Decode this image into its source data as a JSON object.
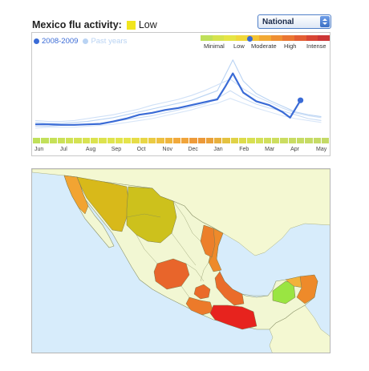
{
  "header": {
    "title": "Mexico flu activity:",
    "level": "Low",
    "level_color": "#f1e51d"
  },
  "region_select": {
    "selected": "National"
  },
  "legend": {
    "current": "2008-2009",
    "current_color": "#3a6bd6",
    "past": "Past years",
    "past_color": "#b9d3f3"
  },
  "scale": {
    "labels": [
      "Minimal",
      "Low",
      "Moderate",
      "High",
      "Intense"
    ],
    "current_level_fraction": 0.38,
    "colors": [
      "#bfe05a",
      "#d6e34e",
      "#e6e545",
      "#f0d83b",
      "#f4c434",
      "#f2a933",
      "#ef8f32",
      "#ea7632",
      "#e35e33",
      "#d84634",
      "#cc3636"
    ]
  },
  "chart_data": {
    "type": "line",
    "title": "Mexico flu activity: Low",
    "xlabel": "",
    "ylabel": "",
    "categories": [
      "Jun",
      "Jul",
      "Aug",
      "Sep",
      "Oct",
      "Nov",
      "Dec",
      "Jan",
      "Feb",
      "Mar",
      "Apr",
      "May"
    ],
    "series": [
      {
        "name": "2008-2009",
        "color": "#3a6bd6",
        "x": [
          0,
          0.5,
          1,
          1.5,
          2,
          2.5,
          3,
          3.5,
          4,
          4.5,
          5,
          5.5,
          6,
          6.5,
          7,
          7.3,
          7.6,
          8,
          8.5,
          9,
          9.5,
          9.8,
          10.2
        ],
        "y": [
          0.9,
          0.9,
          0.85,
          0.85,
          0.9,
          0.95,
          1.2,
          1.5,
          1.9,
          2.1,
          2.4,
          2.6,
          2.9,
          3.2,
          3.5,
          4.8,
          6.2,
          4.2,
          3.3,
          2.9,
          2.2,
          1.6,
          3.4
        ]
      },
      {
        "name": "Past years",
        "color": "#b9d3f3",
        "x": [
          0,
          0.5,
          1,
          1.5,
          2,
          2.5,
          3,
          3.5,
          4,
          4.5,
          5,
          5.5,
          6,
          6.5,
          7,
          7.3,
          7.6,
          8,
          8.5,
          9,
          9.5,
          10,
          10.5,
          11
        ],
        "y": [
          1.1,
          1.0,
          1.0,
          1.1,
          1.2,
          1.4,
          1.6,
          1.9,
          2.2,
          2.5,
          2.8,
          3.1,
          3.4,
          3.9,
          4.4,
          6.0,
          7.6,
          5.4,
          4.1,
          3.4,
          2.8,
          2.2,
          1.9,
          1.7
        ]
      },
      {
        "name": "Past years",
        "color": "#c9dcf5",
        "x": [
          0,
          0.5,
          1,
          1.5,
          2,
          2.5,
          3,
          3.5,
          4,
          4.5,
          5,
          5.5,
          6,
          6.5,
          7,
          7.5,
          8,
          8.5,
          9,
          9.5,
          10,
          10.5,
          11
        ],
        "y": [
          0.7,
          0.7,
          0.8,
          0.8,
          0.9,
          1.0,
          1.2,
          1.4,
          1.6,
          1.8,
          2.1,
          2.4,
          2.7,
          3.0,
          3.6,
          4.4,
          3.6,
          3.0,
          2.6,
          2.3,
          1.9,
          1.5,
          1.3
        ]
      },
      {
        "name": "Past years",
        "color": "#cfe0f7",
        "x": [
          0,
          0.5,
          1,
          1.5,
          2,
          2.5,
          3,
          3.5,
          4,
          4.5,
          5,
          5.5,
          6,
          6.5,
          7,
          7.5,
          8,
          8.5,
          9,
          9.5,
          10,
          10.5,
          11
        ],
        "y": [
          1.3,
          1.2,
          1.2,
          1.3,
          1.5,
          1.7,
          1.9,
          2.2,
          2.5,
          2.9,
          3.2,
          3.5,
          3.9,
          4.4,
          5.0,
          5.6,
          4.6,
          3.8,
          3.2,
          2.6,
          2.1,
          1.8,
          1.6
        ]
      },
      {
        "name": "Past years",
        "color": "#d8e6f8",
        "x": [
          0,
          0.5,
          1,
          1.5,
          2,
          2.5,
          3,
          3.5,
          4,
          4.5,
          5,
          5.5,
          6,
          6.5,
          7,
          7.5,
          8,
          8.5,
          9,
          9.5,
          10,
          10.5,
          11
        ],
        "y": [
          0.5,
          0.6,
          0.6,
          0.6,
          0.7,
          0.8,
          0.9,
          1.1,
          1.3,
          1.5,
          1.8,
          2.1,
          2.4,
          2.8,
          3.1,
          3.6,
          3.1,
          2.6,
          2.2,
          1.8,
          1.5,
          1.3,
          1.1
        ]
      }
    ],
    "ylim": [
      0,
      8.5
    ],
    "grid": false,
    "legend_position": "top-left"
  },
  "activity_strip": {
    "colors": [
      "#bfe05a",
      "#c2e05a",
      "#c6e158",
      "#cbe157",
      "#d0e255",
      "#d4e253",
      "#d8e351",
      "#dbe34f",
      "#dde34e",
      "#dfe44d",
      "#e2e44c",
      "#e5e44b",
      "#e6dd48",
      "#e8d646",
      "#ebcb43",
      "#eec041",
      "#efb53e",
      "#f1a93c",
      "#f0a43b",
      "#ee9b3a",
      "#ec9939",
      "#eaa13a",
      "#e8b03d",
      "#e4c241",
      "#e0d247",
      "#dddc4b",
      "#d8e052",
      "#d4e058",
      "#d0df5c",
      "#cdde5f",
      "#cbdd61",
      "#c9dc63",
      "#c7dc64",
      "#c6db65",
      "#c5db66",
      "#c4da67"
    ]
  },
  "map": {
    "ocean_color": "#d7ecfb",
    "neighbor_color": "#f4f8d2",
    "mexico_base_color": "#f2f7d3",
    "states": [
      {
        "name": "Baja California",
        "color": "#f2a432"
      },
      {
        "name": "Sonora",
        "color": "#d8b91a"
      },
      {
        "name": "Chihuahua",
        "color": "#cdc11c"
      },
      {
        "name": "Tamaulipas",
        "color": "#ee8a2a"
      },
      {
        "name": "Nuevo Leon",
        "color": "#ec7f2a"
      },
      {
        "name": "Jalisco",
        "color": "#e8652b"
      },
      {
        "name": "Veracruz",
        "color": "#ea6c2a"
      },
      {
        "name": "Guerrero",
        "color": "#ec7a2a"
      },
      {
        "name": "Oaxaca",
        "color": "#e7231e"
      },
      {
        "name": "Campeche",
        "color": "#9ae542"
      },
      {
        "name": "Yucatan",
        "color": "#f2b23a"
      },
      {
        "name": "Quintana Roo",
        "color": "#ee8a2a"
      },
      {
        "name": "Mexico",
        "color": "#ea6a29"
      }
    ]
  }
}
